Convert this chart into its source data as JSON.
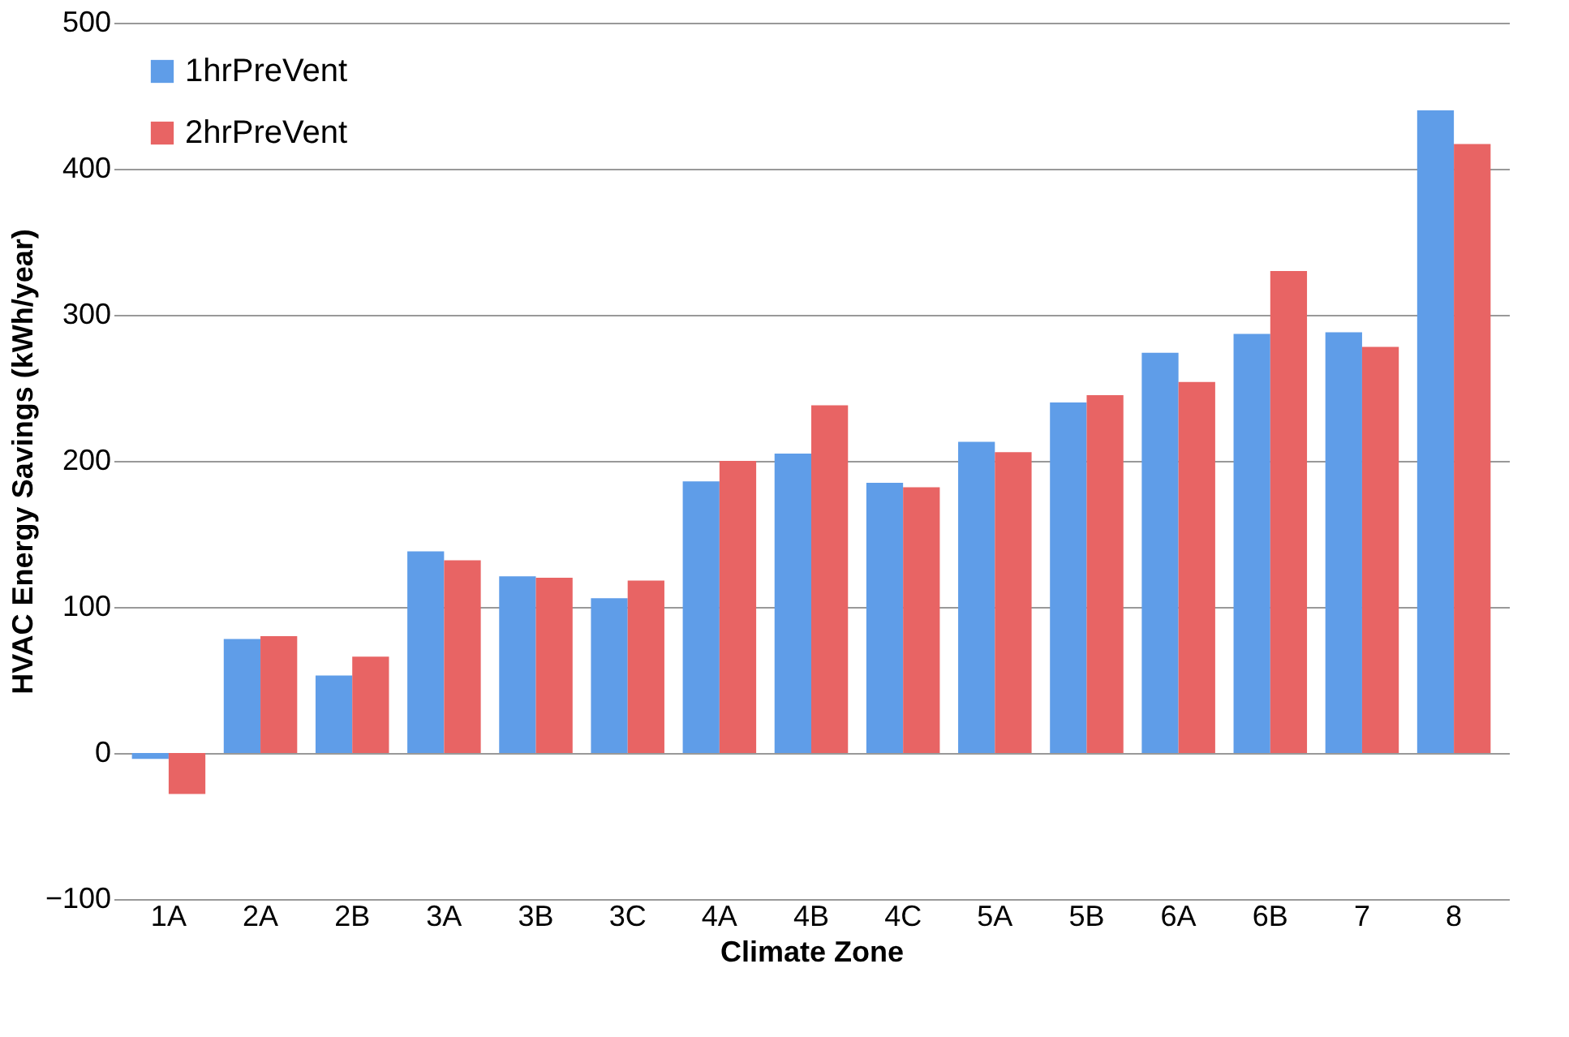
{
  "chart_data": {
    "type": "bar",
    "xlabel": "Climate Zone",
    "ylabel": "HVAC Energy Savings (kWh/year)",
    "categories": [
      "1A",
      "2A",
      "2B",
      "3A",
      "3B",
      "3C",
      "4A",
      "4B",
      "4C",
      "5A",
      "5B",
      "6A",
      "6B",
      "7",
      "8"
    ],
    "series": [
      {
        "name": "1hrPreVent",
        "color": "#5f9de8",
        "values": [
          -4,
          78,
          53,
          138,
          121,
          106,
          186,
          205,
          185,
          213,
          240,
          274,
          287,
          288,
          440
        ]
      },
      {
        "name": "2hrPreVent",
        "color": "#e86464",
        "values": [
          -28,
          80,
          66,
          132,
          120,
          118,
          200,
          238,
          182,
          206,
          245,
          254,
          330,
          278,
          417
        ]
      }
    ],
    "ylim": [
      -100,
      500
    ],
    "yticks": [
      -100,
      0,
      100,
      200,
      300,
      400,
      500
    ],
    "grid": "y",
    "legend": "top left"
  }
}
